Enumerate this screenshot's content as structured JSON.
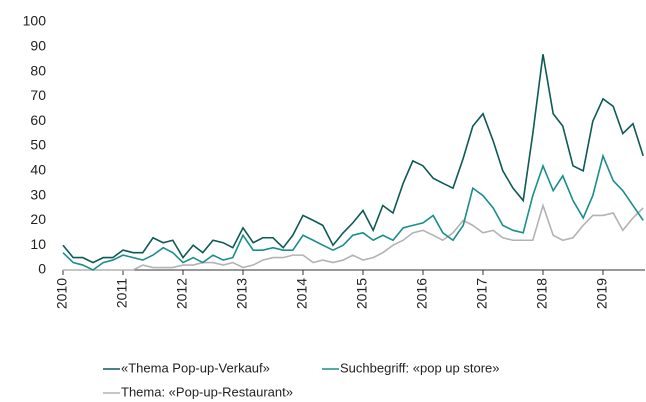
{
  "chart_data": {
    "type": "line",
    "x": [
      2010,
      2010.17,
      2010.33,
      2010.5,
      2010.67,
      2010.83,
      2011,
      2011.17,
      2011.33,
      2011.5,
      2011.67,
      2011.83,
      2012,
      2012.17,
      2012.33,
      2012.5,
      2012.67,
      2012.83,
      2013,
      2013.17,
      2013.33,
      2013.5,
      2013.67,
      2013.83,
      2014,
      2014.17,
      2014.33,
      2014.5,
      2014.67,
      2014.83,
      2015,
      2015.17,
      2015.33,
      2015.5,
      2015.67,
      2015.83,
      2016,
      2016.17,
      2016.33,
      2016.5,
      2016.67,
      2016.83,
      2017,
      2017.17,
      2017.33,
      2017.5,
      2017.67,
      2017.83,
      2018,
      2018.17,
      2018.33,
      2018.5,
      2018.67,
      2018.83,
      2019,
      2019.17,
      2019.33,
      2019.5,
      2019.67
    ],
    "series": [
      {
        "name": "«Thema Pop-up-Verkauf»",
        "color": "#0e5a55",
        "values": [
          10,
          5,
          5,
          3,
          5,
          5,
          8,
          7,
          7,
          13,
          11,
          12,
          5,
          10,
          7,
          12,
          11,
          9,
          17,
          11,
          13,
          13,
          9,
          14,
          22,
          20,
          18,
          10,
          15,
          19,
          24,
          16,
          26,
          23,
          35,
          44,
          42,
          37,
          35,
          33,
          45,
          58,
          63,
          52,
          40,
          33,
          28,
          55,
          87,
          63,
          58,
          42,
          40,
          60,
          69,
          66,
          55,
          59,
          46
        ]
      },
      {
        "name": "Suchbegriff: «pop up store»",
        "color": "#1a8f8a",
        "values": [
          7,
          3,
          2,
          0,
          3,
          4,
          6,
          5,
          4,
          6,
          9,
          7,
          3,
          5,
          3,
          6,
          4,
          5,
          14,
          8,
          8,
          9,
          8,
          8,
          14,
          12,
          10,
          8,
          10,
          14,
          15,
          12,
          14,
          12,
          17,
          18,
          19,
          22,
          15,
          12,
          18,
          33,
          30,
          25,
          18,
          16,
          15,
          30,
          42,
          32,
          38,
          28,
          21,
          30,
          46,
          36,
          32,
          26,
          20
        ]
      },
      {
        "name": "Thema: «Pop-up-Restaurant»",
        "color": "#b3b3b3",
        "values": [
          0,
          0,
          0,
          0,
          0,
          0,
          0,
          0,
          2,
          1,
          1,
          1,
          2,
          2,
          3,
          3,
          2,
          3,
          1,
          2,
          4,
          5,
          5,
          6,
          6,
          3,
          4,
          3,
          4,
          6,
          4,
          5,
          7,
          10,
          12,
          15,
          16,
          14,
          12,
          15,
          20,
          18,
          15,
          16,
          13,
          12,
          12,
          12,
          26,
          14,
          12,
          13,
          18,
          22,
          22,
          23,
          16,
          21,
          25
        ]
      }
    ],
    "xlim": [
      2010,
      2019.7
    ],
    "xticks": [
      2010,
      2011,
      2012,
      2013,
      2014,
      2015,
      2016,
      2017,
      2018,
      2019
    ],
    "ylim": [
      0,
      100
    ],
    "yticks": [
      0,
      10,
      20,
      30,
      40,
      50,
      60,
      70,
      80,
      90,
      100
    ]
  }
}
